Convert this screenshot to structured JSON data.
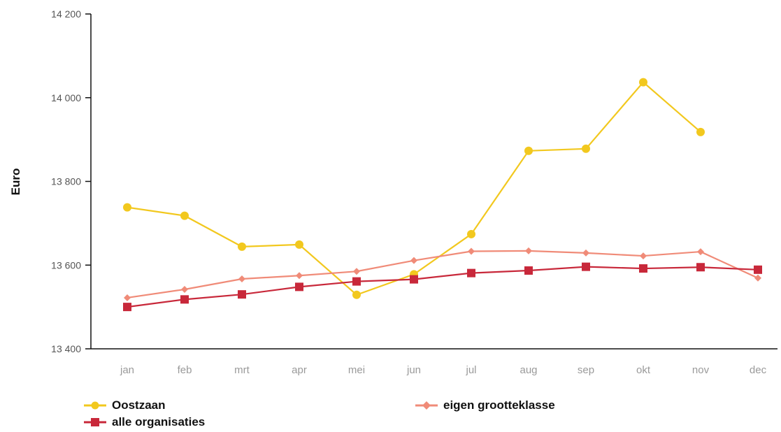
{
  "chart_data": {
    "type": "line",
    "ylabel": "Euro",
    "xlabel": "",
    "ylim": [
      13400,
      14200
    ],
    "yticks": [
      13400,
      13600,
      13800,
      14000,
      14200
    ],
    "ytick_labels": [
      "13 400",
      "13 600",
      "13 800",
      "14 000",
      "14 200"
    ],
    "categories": [
      "jan",
      "feb",
      "mrt",
      "apr",
      "mei",
      "jun",
      "jul",
      "aug",
      "sep",
      "okt",
      "nov",
      "dec"
    ],
    "grid": false,
    "legend_position": "bottom",
    "series": [
      {
        "name": "Oostzaan",
        "color": "#f2c81e",
        "marker": "circle",
        "values": [
          13738,
          13718,
          13644,
          13649,
          13529,
          13578,
          13674,
          13873,
          13878,
          14037,
          13918,
          null
        ]
      },
      {
        "name": "eigen grootteklasse",
        "color": "#f08b78",
        "marker": "diamond",
        "values": [
          13522,
          13542,
          13567,
          13575,
          13585,
          13611,
          13633,
          13634,
          13629,
          13622,
          13632,
          13569
        ]
      },
      {
        "name": "alle organisaties",
        "color": "#c8283a",
        "marker": "square",
        "values": [
          13500,
          13518,
          13530,
          13548,
          13561,
          13566,
          13581,
          13587,
          13596,
          13592,
          13595,
          13589
        ]
      }
    ]
  }
}
